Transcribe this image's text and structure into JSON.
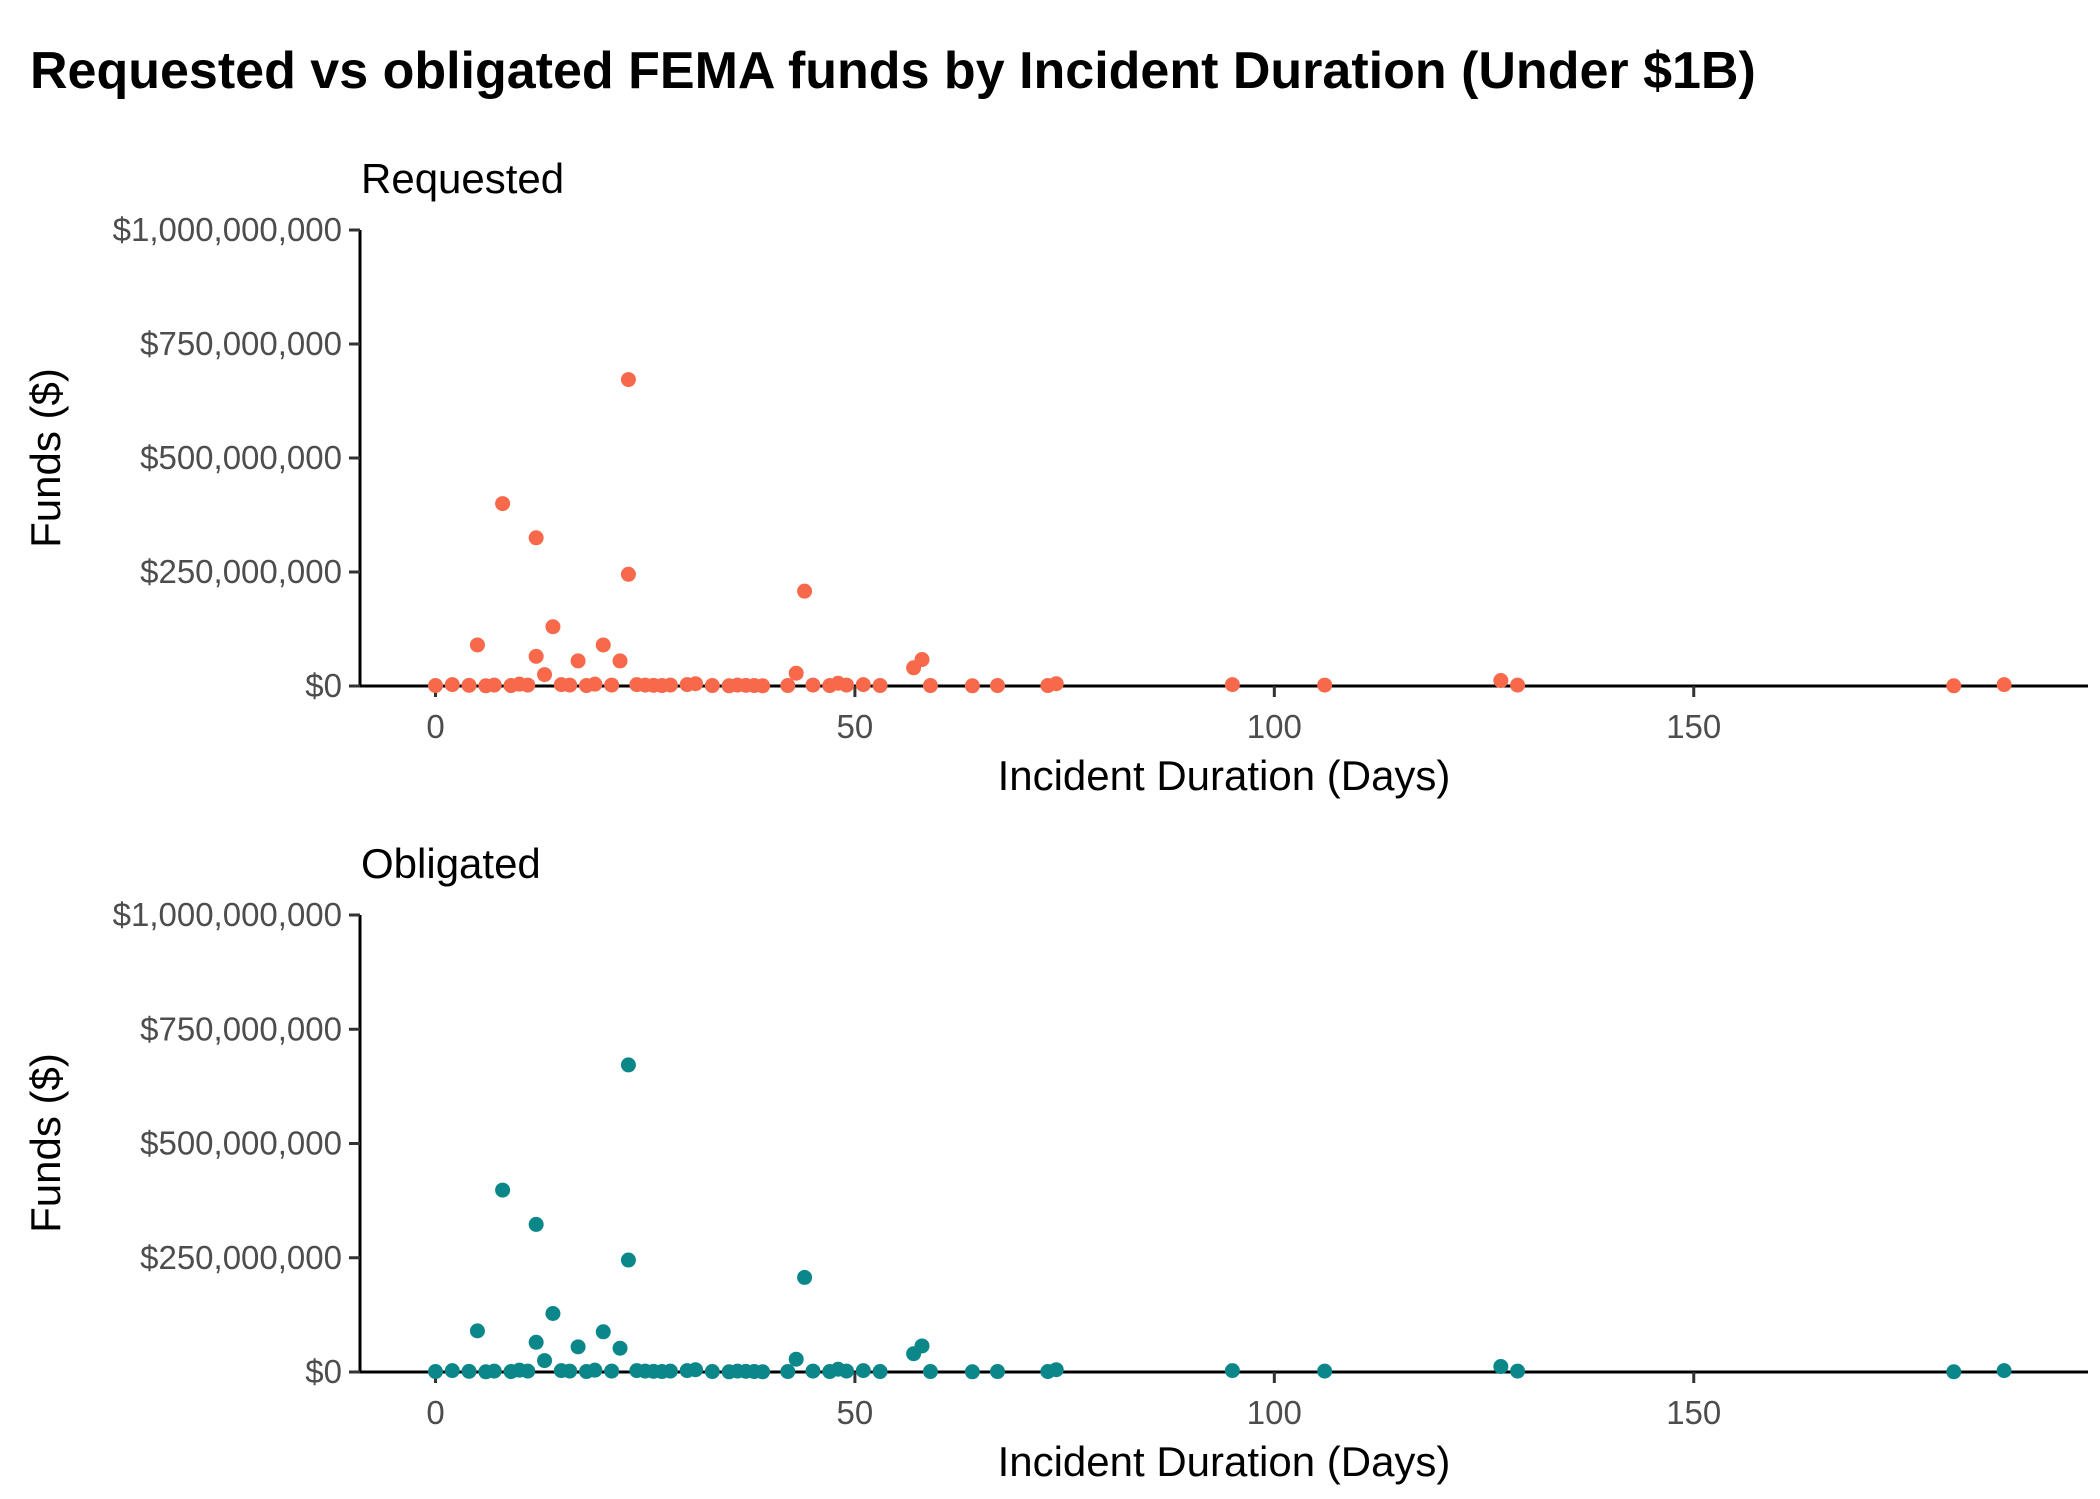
{
  "chart_data": {
    "type": "scatter",
    "title": "Requested vs obligated FEMA funds by Incident Duration (Under $1B)",
    "xlabel": "Incident Duration (Days)",
    "ylabel": "Funds ($)",
    "xlim": [
      -9,
      197
    ],
    "ylim": [
      0,
      1000000000
    ],
    "x_ticks": [
      0,
      50,
      100,
      150
    ],
    "y_ticks": [
      0,
      250000000,
      500000000,
      750000000,
      1000000000
    ],
    "y_tick_labels": [
      "$0",
      "$250,000,000",
      "$500,000,000",
      "$750,000,000",
      "$1,000,000,000"
    ],
    "grid": false,
    "legend": "none",
    "panels": [
      {
        "title": "Requested",
        "color": "#F8694B",
        "points": [
          [
            0,
            1000000
          ],
          [
            2,
            3000000
          ],
          [
            4,
            1500000
          ],
          [
            5,
            90000000
          ],
          [
            6,
            500000
          ],
          [
            7,
            2000000
          ],
          [
            8,
            400000000
          ],
          [
            9,
            1000000
          ],
          [
            10,
            4000000
          ],
          [
            11,
            2000000
          ],
          [
            12,
            325000000
          ],
          [
            12,
            65000000
          ],
          [
            13,
            25000000
          ],
          [
            14,
            130000000
          ],
          [
            15,
            3000000
          ],
          [
            16,
            2000000
          ],
          [
            17,
            55000000
          ],
          [
            18,
            1000000
          ],
          [
            19,
            4000000
          ],
          [
            20,
            90000000
          ],
          [
            21,
            2000000
          ],
          [
            22,
            55000000
          ],
          [
            23,
            672000000
          ],
          [
            23,
            245000000
          ],
          [
            24,
            3000000
          ],
          [
            25,
            2000000
          ],
          [
            26,
            1500000
          ],
          [
            27,
            1000000
          ],
          [
            28,
            2000000
          ],
          [
            30,
            3000000
          ],
          [
            31,
            5000000
          ],
          [
            33,
            1000000
          ],
          [
            35,
            500000
          ],
          [
            36,
            2000000
          ],
          [
            37,
            1500000
          ],
          [
            38,
            1000000
          ],
          [
            39,
            500000
          ],
          [
            42,
            1000000
          ],
          [
            43,
            28000000
          ],
          [
            44,
            208000000
          ],
          [
            45,
            2000000
          ],
          [
            47,
            1000000
          ],
          [
            48,
            6000000
          ],
          [
            49,
            2000000
          ],
          [
            51,
            3000000
          ],
          [
            53,
            1000000
          ],
          [
            57,
            40000000
          ],
          [
            58,
            58000000
          ],
          [
            59,
            1000000
          ],
          [
            64,
            500000
          ],
          [
            67,
            1000000
          ],
          [
            73,
            1000000
          ],
          [
            74,
            5000000
          ],
          [
            95,
            3000000
          ],
          [
            106,
            2000000
          ],
          [
            127,
            12000000
          ],
          [
            129,
            2000000
          ],
          [
            181,
            500000
          ],
          [
            187,
            3000000
          ]
        ]
      },
      {
        "title": "Obligated",
        "color": "#0B878A",
        "points": [
          [
            0,
            1000000
          ],
          [
            2,
            3000000
          ],
          [
            4,
            1500000
          ],
          [
            5,
            90000000
          ],
          [
            6,
            500000
          ],
          [
            7,
            2000000
          ],
          [
            8,
            398000000
          ],
          [
            9,
            1000000
          ],
          [
            10,
            4000000
          ],
          [
            11,
            2000000
          ],
          [
            12,
            323000000
          ],
          [
            12,
            65000000
          ],
          [
            13,
            25000000
          ],
          [
            14,
            128000000
          ],
          [
            15,
            3000000
          ],
          [
            16,
            2000000
          ],
          [
            17,
            55000000
          ],
          [
            18,
            1000000
          ],
          [
            19,
            4000000
          ],
          [
            20,
            88000000
          ],
          [
            21,
            2000000
          ],
          [
            22,
            52000000
          ],
          [
            23,
            672000000
          ],
          [
            23,
            245000000
          ],
          [
            24,
            3000000
          ],
          [
            25,
            2000000
          ],
          [
            26,
            1500000
          ],
          [
            27,
            1000000
          ],
          [
            28,
            2000000
          ],
          [
            30,
            3000000
          ],
          [
            31,
            5000000
          ],
          [
            33,
            1000000
          ],
          [
            35,
            500000
          ],
          [
            36,
            2000000
          ],
          [
            37,
            1500000
          ],
          [
            38,
            1000000
          ],
          [
            39,
            500000
          ],
          [
            42,
            1000000
          ],
          [
            43,
            28000000
          ],
          [
            44,
            207000000
          ],
          [
            45,
            2000000
          ],
          [
            47,
            1000000
          ],
          [
            48,
            6000000
          ],
          [
            49,
            2000000
          ],
          [
            51,
            3000000
          ],
          [
            53,
            1000000
          ],
          [
            57,
            40000000
          ],
          [
            58,
            57000000
          ],
          [
            59,
            1000000
          ],
          [
            64,
            500000
          ],
          [
            67,
            1000000
          ],
          [
            73,
            1000000
          ],
          [
            74,
            5000000
          ],
          [
            95,
            3000000
          ],
          [
            106,
            2000000
          ],
          [
            127,
            12000000
          ],
          [
            129,
            2000000
          ],
          [
            181,
            500000
          ],
          [
            187,
            3000000
          ]
        ]
      }
    ]
  }
}
